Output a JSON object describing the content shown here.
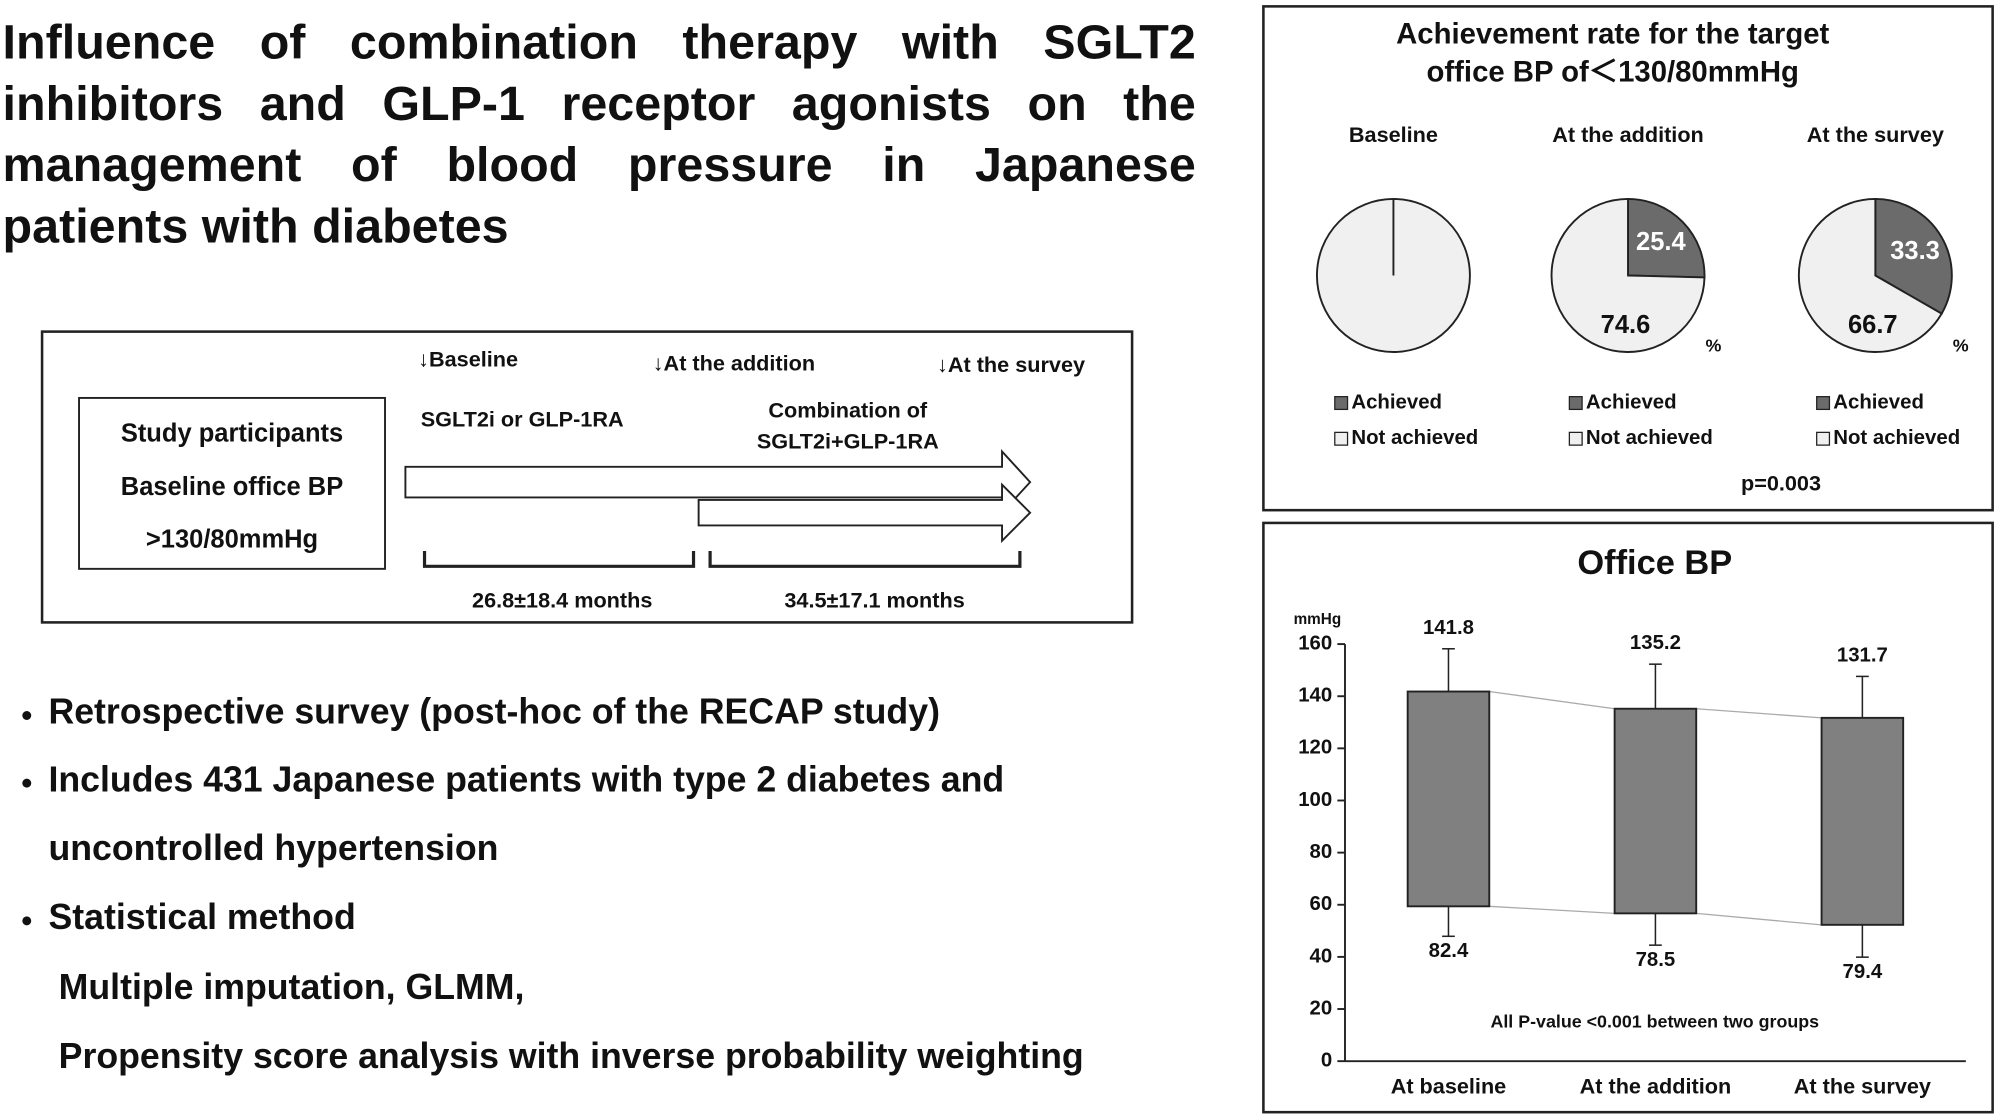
{
  "title": "Influence of combination therapy with SGLT2 inhibitors and GLP-1 receptor agonists on the management of blood pressure in Japanese patients with diabetes",
  "timeline": {
    "participants": [
      "Study participants",
      "Baseline office BP",
      ">130/80mmHg"
    ],
    "points": [
      "↓Baseline",
      "↓At the addition",
      "↓At the survey"
    ],
    "phase1": "SGLT2i or GLP-1RA",
    "phase2": [
      "Combination of",
      "SGLT2i+GLP-1RA"
    ],
    "durations": [
      "26.8±18.4 months",
      "34.5±17.1 months"
    ]
  },
  "bullets": [
    "Retrospective survey (post-hoc of the RECAP study)",
    "Includes 431 Japanese patients with type 2 diabetes and",
    "uncontrolled hypertension",
    "Statistical method",
    "Multiple imputation, GLMM,",
    "Propensity score analysis with inverse probability weighting"
  ],
  "chart_data": [
    {
      "type": "pie",
      "title": [
        "Achievement rate for the target",
        "office BP of＜130/80mmHg"
      ],
      "categories": [
        "Achieved",
        "Not achieved"
      ],
      "colors": [
        "#6b6b6b",
        "#f0f0f0"
      ],
      "unit": "%",
      "groups": [
        {
          "name": "Baseline",
          "values": [
            0,
            100
          ],
          "show_labels": false
        },
        {
          "name": "At the addition",
          "values": [
            25.4,
            74.6
          ],
          "show_labels": true
        },
        {
          "name": "At the survey",
          "values": [
            33.3,
            66.7
          ],
          "show_labels": true
        }
      ],
      "note": "p=0.003"
    },
    {
      "type": "bar",
      "title": "Office BP",
      "y_label": "mmHg",
      "categories": [
        "At baseline",
        "At the addition",
        "At the survey"
      ],
      "sbp": [
        141.8,
        135.2,
        131.7
      ],
      "sbp_error": [
        16.4,
        17.1,
        15.9
      ],
      "dbp": [
        82.4,
        78.5,
        79.4
      ],
      "dbp_error": [
        11.5,
        12.2,
        12.4
      ],
      "color": "#808080",
      "ylim": [
        0,
        160
      ],
      "yticks": [
        0,
        20,
        40,
        60,
        80,
        100,
        120,
        140,
        160
      ],
      "note": "All P-value <0.001 between two groups"
    }
  ]
}
